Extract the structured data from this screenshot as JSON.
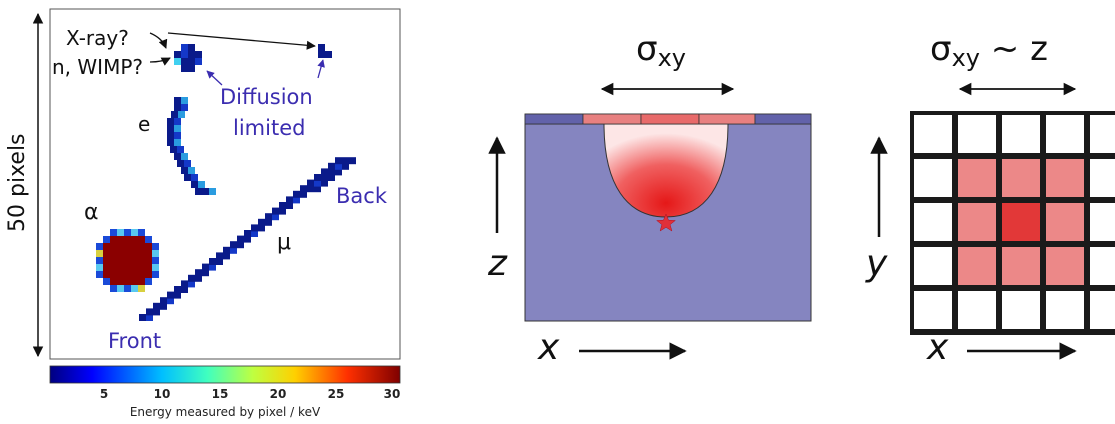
{
  "left_panel": {
    "height_label": "50 pixels",
    "track_labels": {
      "xray": "X-ray?",
      "nwimp": "n, WIMP?",
      "electron": "e",
      "alpha": "α",
      "muon": "μ",
      "diffusion_line1": "Diffusion",
      "diffusion_line2": "limited",
      "front": "Front",
      "back": "Back"
    },
    "colorbar": {
      "ticks": [
        "5",
        "10",
        "15",
        "20",
        "25",
        "30"
      ],
      "caption": "Energy measured by pixel / keV"
    }
  },
  "middle_panel": {
    "sigma_label": "σ",
    "sigma_sub": "xy",
    "z_axis": "z",
    "x_axis": "x"
  },
  "right_panel": {
    "sigma_label": "σ",
    "sigma_sub": "xy",
    "sigma_suffix": " ~ z",
    "y_axis": "y",
    "x_axis": "x"
  },
  "colors": {
    "bulk": "#8585c0",
    "pixel_red": "#e88080",
    "pixel_center": "#e83a3a",
    "purple_text": "#3b2db0",
    "track_dark": "#0a1a8a",
    "alpha_core": "#8b0000"
  }
}
